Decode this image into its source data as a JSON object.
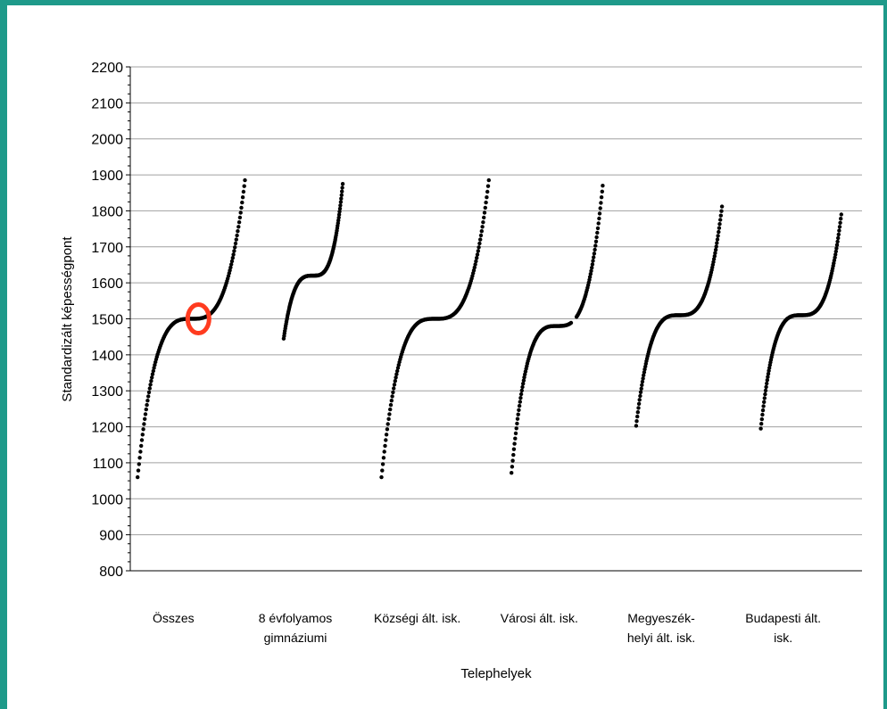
{
  "chart_data": {
    "type": "scatter",
    "title": "",
    "xlabel": "Telephelyek",
    "ylabel": "Standardizált képességpont",
    "ylim": [
      800,
      2200
    ],
    "yticks": [
      800,
      900,
      1000,
      1100,
      1200,
      1300,
      1400,
      1500,
      1600,
      1700,
      1800,
      1900,
      2000,
      2100,
      2200
    ],
    "grid": true,
    "categories": [
      {
        "line1": "Összes",
        "line2": ""
      },
      {
        "line1": "8 évfolyamos",
        "line2": "gimnáziumi"
      },
      {
        "line1": "Községi ált. isk.",
        "line2": ""
      },
      {
        "line1": "Városi ált. isk.",
        "line2": ""
      },
      {
        "line1": "Megyeszék-",
        "line2": "helyi ált. isk."
      },
      {
        "line1": "Budapesti ált.",
        "line2": "isk."
      }
    ],
    "series": [
      {
        "min": 1060,
        "max": 1885,
        "median": 1500,
        "spread": 1.0,
        "gaps": []
      },
      {
        "min": 1445,
        "max": 1875,
        "median": 1620,
        "spread": 0.55,
        "gaps": []
      },
      {
        "min": 1060,
        "max": 1885,
        "median": 1500,
        "spread": 1.0,
        "gaps": []
      },
      {
        "min": 1072,
        "max": 1870,
        "median": 1480,
        "spread": 0.85,
        "gaps": [
          [
            1490,
            1505
          ]
        ]
      },
      {
        "min": 1203,
        "max": 1812,
        "median": 1510,
        "spread": 0.8,
        "gaps": []
      },
      {
        "min": 1195,
        "max": 1790,
        "median": 1510,
        "spread": 0.75,
        "gaps": []
      }
    ],
    "highlight": {
      "category": 0,
      "value": 1500,
      "color": "#ff3b1f"
    },
    "grid_color": "#a0a0a0",
    "point_color": "#000000"
  }
}
